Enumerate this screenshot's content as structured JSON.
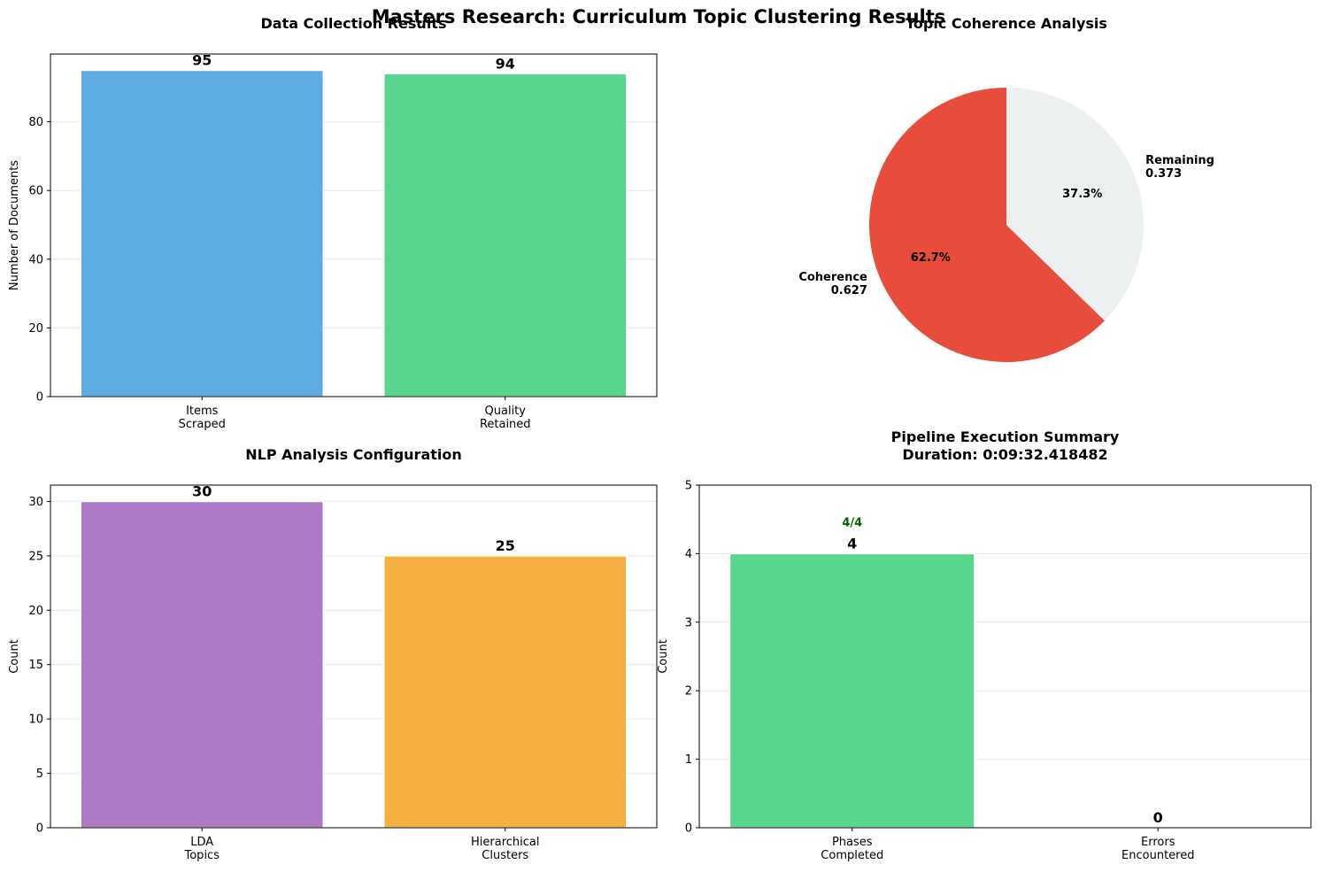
{
  "figure": {
    "suptitle": "Masters Research: Curriculum Topic Clustering Results"
  },
  "chart_data": [
    {
      "type": "bar",
      "title": "Data Collection Results",
      "xlabel": "",
      "ylabel": "Number of Documents",
      "categories": [
        "Items\nScraped",
        "Quality\nRetained"
      ],
      "values": [
        95,
        94
      ],
      "data_labels": [
        "95",
        "94"
      ],
      "colors": [
        "#5dade2",
        "#58d68d"
      ],
      "ylim": [
        0,
        99.75
      ],
      "yticks": [
        0,
        20,
        40,
        60,
        80
      ],
      "grid": "y"
    },
    {
      "type": "pie",
      "title": "Topic Coherence Analysis",
      "slices": [
        {
          "label": "Coherence\n0.627",
          "value": 0.627,
          "pct": "62.7%",
          "color": "#e74c3c"
        },
        {
          "label": "Remaining\n0.373",
          "value": 0.373,
          "pct": "37.3%",
          "color": "#ecf0f1"
        }
      ],
      "startangle": 90
    },
    {
      "type": "bar",
      "title": "NLP Analysis Configuration",
      "xlabel": "",
      "ylabel": "Count",
      "categories": [
        "LDA\nTopics",
        "Hierarchical\nClusters"
      ],
      "values": [
        30,
        25
      ],
      "data_labels": [
        "30",
        "25"
      ],
      "colors": [
        "#af7ac5",
        "#f5b041"
      ],
      "ylim": [
        0,
        31.5
      ],
      "yticks": [
        0,
        5,
        10,
        15,
        20,
        25,
        30
      ],
      "grid": "y"
    },
    {
      "type": "bar",
      "title": "Pipeline Execution Summary\nDuration: 0:09:32.418482",
      "xlabel": "",
      "ylabel": "Count",
      "categories": [
        "Phases\nCompleted",
        "Errors\nEncountered"
      ],
      "values": [
        4,
        0
      ],
      "data_labels": [
        "4",
        "0"
      ],
      "colors": [
        "#58d68d",
        "#e74c3c"
      ],
      "ylim": [
        0,
        5
      ],
      "yticks": [
        0,
        1,
        2,
        3,
        4,
        5
      ],
      "grid": "y",
      "annotation": {
        "text": "4/4",
        "x_index": 0,
        "y": 4.4,
        "color": "#006400"
      }
    }
  ]
}
